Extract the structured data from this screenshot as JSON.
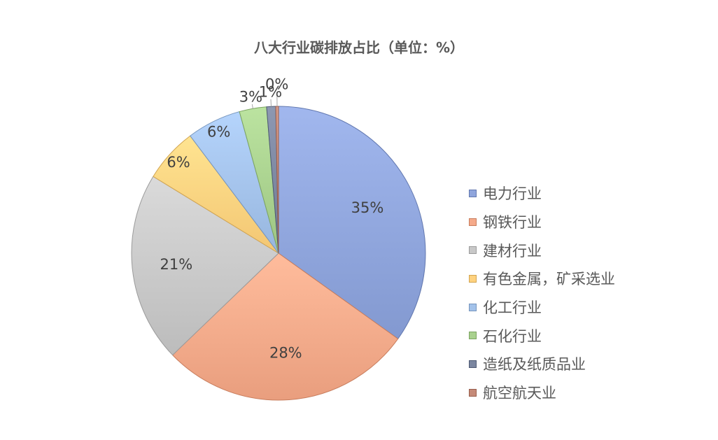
{
  "chart_data": {
    "type": "pie",
    "title": "八大行业碳排放占比（单位：%）",
    "categories": [
      "电力行业",
      "钢铁行业",
      "建材行业",
      "有色金属，矿采选业",
      "化工行业",
      "石化行业",
      "造纸及纸质品业",
      "航空航天业"
    ],
    "values": [
      35,
      28,
      21,
      6,
      6,
      3,
      1,
      0.3
    ],
    "data_labels": [
      "35%",
      "28%",
      "21%",
      "6%",
      "6%",
      "3%",
      "1%",
      "0%"
    ],
    "colors": [
      "#8FA5DC",
      "#F5AA8A",
      "#C8C8C8",
      "#FFD27F",
      "#A3C2EA",
      "#A9D18E",
      "#7B86A0",
      "#C58A78"
    ],
    "legend_position": "right"
  }
}
